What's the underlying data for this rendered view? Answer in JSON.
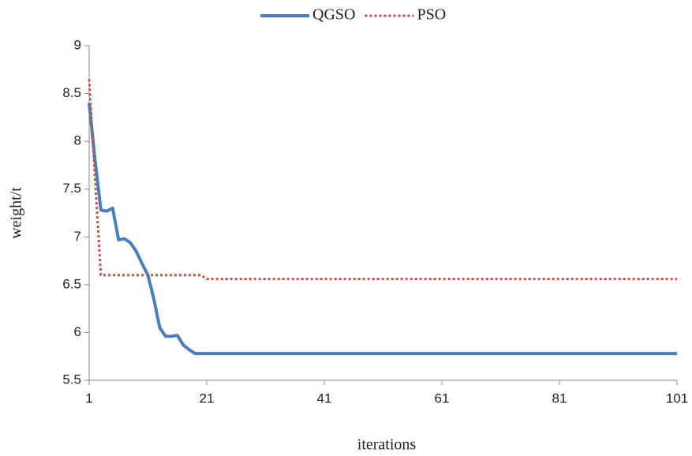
{
  "chart_data": {
    "type": "line",
    "x_label": "iterations",
    "y_label": "weight/t",
    "x": [
      1,
      2,
      3,
      4,
      5,
      6,
      7,
      8,
      9,
      10,
      11,
      12,
      13,
      14,
      15,
      16,
      17,
      18,
      19,
      20,
      21,
      101
    ],
    "series": [
      {
        "name": "QGSO",
        "color": "#4a7ebb",
        "style": "solid",
        "values": [
          8.4,
          7.8,
          7.28,
          7.27,
          7.3,
          6.97,
          6.98,
          6.94,
          6.85,
          6.72,
          6.6,
          6.35,
          6.05,
          5.96,
          5.96,
          5.97,
          5.87,
          5.82,
          5.78,
          5.78,
          5.78,
          5.78
        ]
      },
      {
        "name": "PSO",
        "color": "#c0504d",
        "style": "dotted",
        "values": [
          8.65,
          7.6,
          6.6,
          6.6,
          6.6,
          6.6,
          6.6,
          6.6,
          6.6,
          6.6,
          6.6,
          6.6,
          6.6,
          6.6,
          6.6,
          6.6,
          6.6,
          6.6,
          6.6,
          6.6,
          6.56,
          6.56
        ]
      }
    ],
    "xlim": [
      1,
      101
    ],
    "xticks": [
      1,
      21,
      41,
      61,
      81,
      101
    ],
    "ylim": [
      5.5,
      9
    ],
    "yticks": [
      5.5,
      6,
      6.5,
      7,
      7.5,
      8,
      8.5,
      9
    ],
    "grid": false,
    "legend": "top"
  }
}
